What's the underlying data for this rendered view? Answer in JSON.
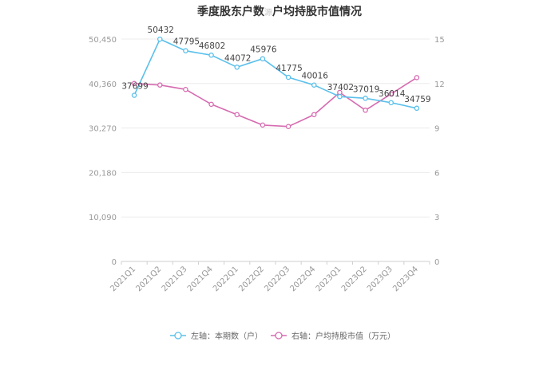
{
  "title_part1": "季度股东户数",
  "watermark": "源",
  "title_part2": "户均持股市值情况",
  "chart_data": {
    "type": "line",
    "categories": [
      "2021Q1",
      "2021Q2",
      "2021Q3",
      "2021Q4",
      "2022Q1",
      "2022Q2",
      "2022Q3",
      "2022Q4",
      "2023Q1",
      "2023Q2",
      "2023Q3",
      "2023Q4"
    ],
    "series": [
      {
        "name": "左轴：本期数（户）",
        "axis": "left",
        "color": "#5bc0eb",
        "values": [
          37699,
          50432,
          47795,
          46802,
          44072,
          45976,
          41775,
          40016,
          37402,
          37019,
          36014,
          34759
        ],
        "labels": [
          "37699",
          "50432",
          "47795",
          "46802",
          "44072",
          "45976",
          "41775",
          "40016",
          "37402",
          "37019",
          "36014",
          "34759"
        ]
      },
      {
        "name": "右轴：户均持股市值（万元）",
        "axis": "right",
        "color": "#d66bb0",
        "values": [
          12.0,
          11.9,
          11.6,
          10.6,
          9.9,
          9.2,
          9.1,
          9.9,
          11.4,
          10.2,
          11.3,
          12.4
        ]
      }
    ],
    "y_left": {
      "min": 0,
      "max": 50450,
      "ticks": [
        "0",
        "10,090",
        "20,180",
        "30,270",
        "40,360",
        "50,450"
      ]
    },
    "y_right": {
      "min": 0,
      "max": 15,
      "ticks": [
        "0",
        "3",
        "6",
        "9",
        "12",
        "15"
      ]
    },
    "grid": true,
    "legend_position": "bottom"
  }
}
